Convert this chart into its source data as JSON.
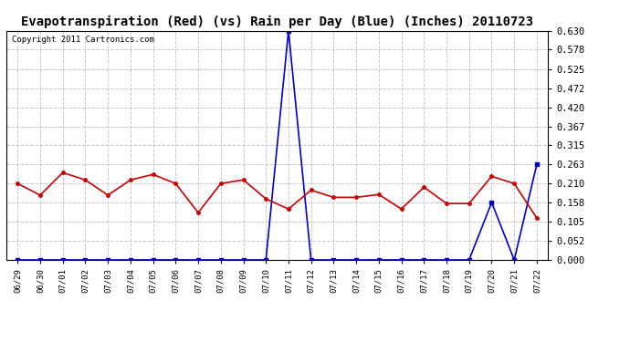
{
  "title": "Evapotranspiration (Red) (vs) Rain per Day (Blue) (Inches) 20110723",
  "copyright": "Copyright 2011 Cartronics.com",
  "dates": [
    "06/29",
    "06/30",
    "07/01",
    "07/02",
    "07/03",
    "07/04",
    "07/05",
    "07/06",
    "07/07",
    "07/08",
    "07/09",
    "07/10",
    "07/11",
    "07/12",
    "07/13",
    "07/14",
    "07/15",
    "07/16",
    "07/17",
    "07/18",
    "07/19",
    "07/20",
    "07/21",
    "07/22"
  ],
  "et_red": [
    0.21,
    0.178,
    0.24,
    0.22,
    0.178,
    0.22,
    0.235,
    0.21,
    0.13,
    0.21,
    0.22,
    0.168,
    0.14,
    0.192,
    0.172,
    0.172,
    0.18,
    0.14,
    0.2,
    0.155,
    0.155,
    0.23,
    0.21,
    0.115
  ],
  "rain_blue": [
    0.0,
    0.0,
    0.0,
    0.0,
    0.0,
    0.0,
    0.0,
    0.0,
    0.0,
    0.0,
    0.0,
    0.0,
    0.63,
    0.0,
    0.0,
    0.0,
    0.0,
    0.0,
    0.0,
    0.0,
    0.0,
    0.158,
    0.0,
    0.263
  ],
  "ylim": [
    0.0,
    0.63
  ],
  "yticks": [
    0.0,
    0.052,
    0.105,
    0.158,
    0.21,
    0.263,
    0.315,
    0.367,
    0.42,
    0.472,
    0.525,
    0.578,
    0.63
  ],
  "bg_color": "#ffffff",
  "plot_bg_color": "#ffffff",
  "grid_color": "#c8c8c8",
  "red_color": "#cc0000",
  "blue_color": "#0000cc",
  "title_fontsize": 10,
  "copyright_fontsize": 6.5
}
